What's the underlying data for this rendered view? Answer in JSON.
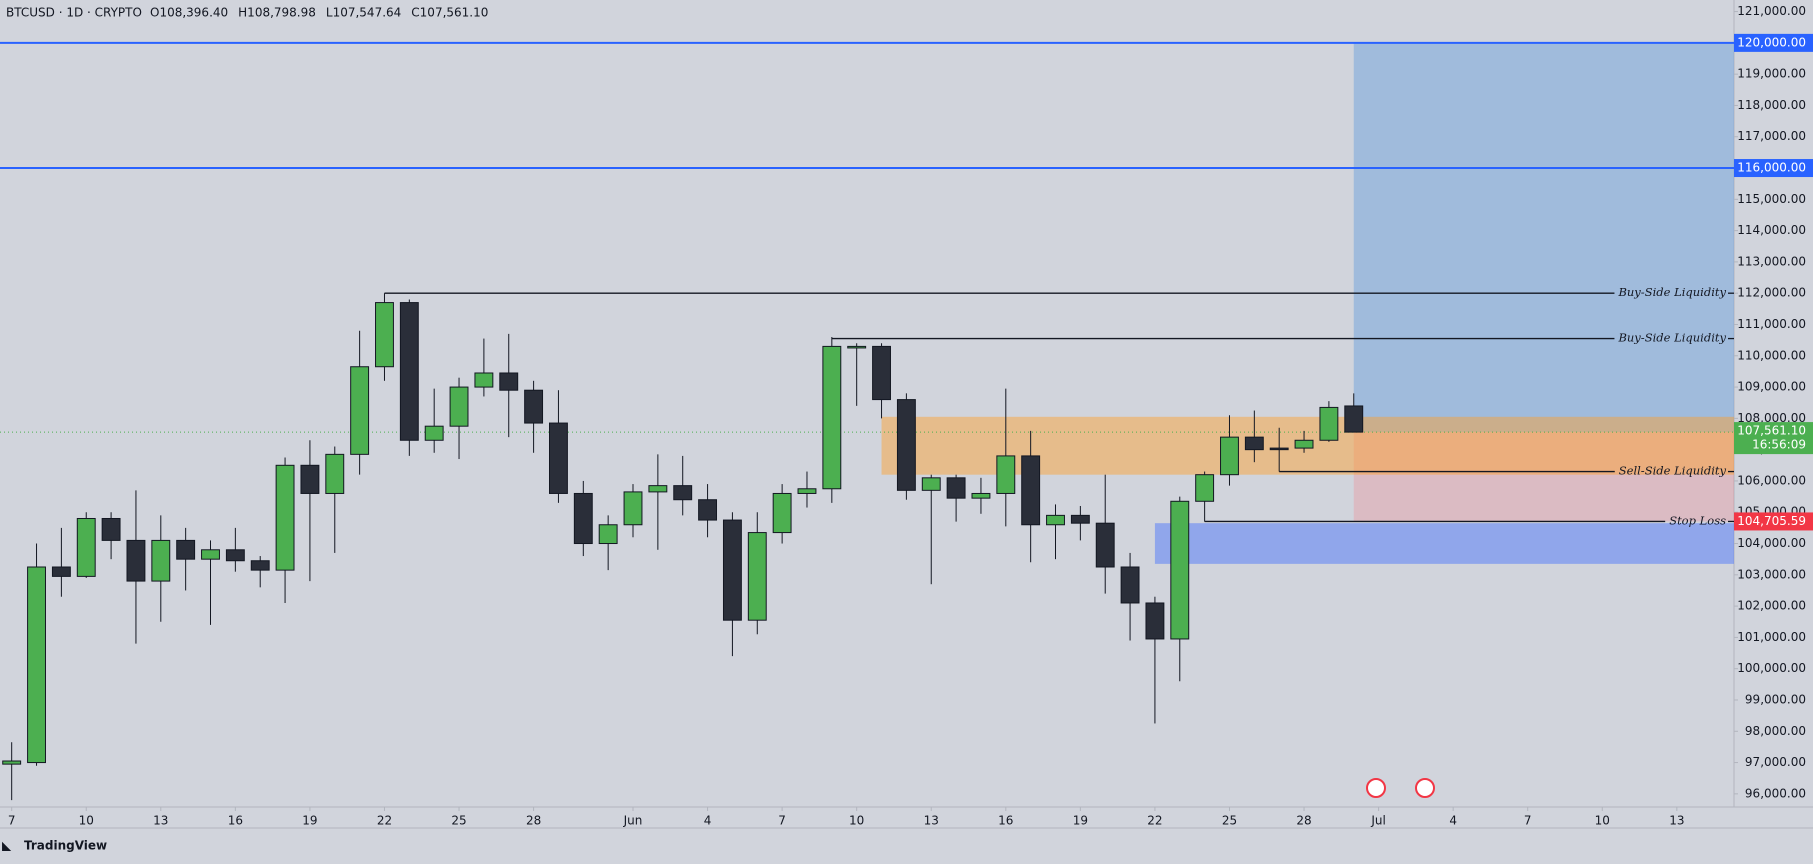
{
  "chart_data": {
    "type": "candlestick",
    "symbol": "BTCUSD · 1D · CRYPTO",
    "ohlc_labels": [
      "O108,396.40",
      "H108,798.98",
      "L107,547.64",
      "C107,561.10"
    ],
    "x": [
      0,
      1,
      2,
      3,
      4,
      5,
      6,
      7,
      8,
      9,
      10,
      11,
      12,
      13,
      14,
      15,
      16,
      17,
      18,
      19,
      20,
      21,
      22,
      23,
      24,
      25,
      26,
      27,
      28,
      29,
      30,
      31,
      32,
      33,
      34,
      35,
      36,
      37,
      38,
      39,
      40,
      41,
      42,
      43,
      44,
      45,
      46,
      47,
      48,
      49,
      50,
      51,
      52,
      53,
      54
    ],
    "open": [
      96950,
      97000,
      103250,
      102950,
      104800,
      104100,
      102800,
      104100,
      103500,
      103800,
      103450,
      103150,
      106500,
      105600,
      106850,
      109650,
      111700,
      107300,
      107750,
      109000,
      109450,
      108900,
      107850,
      105600,
      104000,
      104600,
      105650,
      105850,
      105400,
      104750,
      101550,
      104350,
      105600,
      105750,
      110250,
      110300,
      108600,
      105700,
      106100,
      105450,
      105600,
      106800,
      104600,
      104900,
      104650,
      103250,
      102100,
      100950,
      105350,
      106200,
      107400,
      107050,
      107050,
      107300,
      108396.4
    ],
    "high": [
      97650,
      104000,
      104500,
      105000,
      105000,
      105700,
      104900,
      104500,
      104100,
      104500,
      103600,
      106750,
      107300,
      107100,
      110800,
      112000,
      111800,
      108950,
      109300,
      110550,
      110700,
      109200,
      108900,
      106000,
      104900,
      105900,
      106850,
      106800,
      105900,
      105000,
      105000,
      105900,
      106300,
      110600,
      110400,
      110400,
      108800,
      106200,
      106200,
      106100,
      108950,
      107600,
      105250,
      105200,
      106200,
      103700,
      102300,
      105500,
      106300,
      108100,
      108250,
      107700,
      107600,
      108550,
      108798.98
    ],
    "low": [
      95800,
      96900,
      102300,
      102900,
      103500,
      100800,
      101500,
      102500,
      101400,
      103100,
      102600,
      102100,
      102800,
      103700,
      106200,
      109200,
      106800,
      106900,
      106700,
      108700,
      107400,
      106900,
      105300,
      103600,
      103150,
      104200,
      103800,
      104900,
      104200,
      100400,
      101100,
      104000,
      105150,
      105300,
      108400,
      108000,
      105400,
      102700,
      104700,
      104950,
      104550,
      103400,
      103500,
      104100,
      102400,
      100900,
      98250,
      99600,
      104700,
      105850,
      106600,
      106300,
      106900,
      107250,
      107547.64
    ],
    "close": [
      97050,
      103250,
      102950,
      104800,
      104100,
      102800,
      104100,
      103500,
      103800,
      103450,
      103150,
      106500,
      105600,
      106850,
      109650,
      111700,
      107300,
      107750,
      109000,
      109450,
      108900,
      107850,
      105600,
      104000,
      104600,
      105650,
      105850,
      105400,
      104750,
      101550,
      104350,
      105600,
      105750,
      110300,
      110300,
      108600,
      105700,
      106100,
      105450,
      105600,
      106800,
      104600,
      104900,
      104650,
      103250,
      102100,
      100950,
      105350,
      106200,
      107400,
      107000,
      107000,
      107300,
      108350,
      107561.1
    ],
    "up_color": "#4caf50",
    "down_color": "#2a2e39",
    "xlim": [
      -0.47,
      69.3
    ],
    "ylim": [
      95580,
      121370
    ],
    "xticks": [
      {
        "value": 0,
        "label": "7"
      },
      {
        "value": 3,
        "label": "10"
      },
      {
        "value": 6,
        "label": "13"
      },
      {
        "value": 9,
        "label": "16"
      },
      {
        "value": 12,
        "label": "19"
      },
      {
        "value": 15,
        "label": "22"
      },
      {
        "value": 18,
        "label": "25"
      },
      {
        "value": 21,
        "label": "28"
      },
      {
        "value": 25,
        "label": "Jun"
      },
      {
        "value": 28,
        "label": "4"
      },
      {
        "value": 31,
        "label": "7"
      },
      {
        "value": 34,
        "label": "10"
      },
      {
        "value": 37,
        "label": "13"
      },
      {
        "value": 40,
        "label": "16"
      },
      {
        "value": 43,
        "label": "19"
      },
      {
        "value": 46,
        "label": "22"
      },
      {
        "value": 49,
        "label": "25"
      },
      {
        "value": 52,
        "label": "28"
      },
      {
        "value": 55,
        "label": "Jul"
      },
      {
        "value": 58,
        "label": "4"
      },
      {
        "value": 61,
        "label": "7"
      },
      {
        "value": 64,
        "label": "10"
      },
      {
        "value": 67,
        "label": "13"
      }
    ],
    "yticks": [
      {
        "value": 96000,
        "label": "96,000.00"
      },
      {
        "value": 97000,
        "label": "97,000.00"
      },
      {
        "value": 98000,
        "label": "98,000.00"
      },
      {
        "value": 99000,
        "label": "99,000.00"
      },
      {
        "value": 100000,
        "label": "100,000.00"
      },
      {
        "value": 101000,
        "label": "101,000.00"
      },
      {
        "value": 102000,
        "label": "102,000.00"
      },
      {
        "value": 103000,
        "label": "103,000.00"
      },
      {
        "value": 104000,
        "label": "104,000.00"
      },
      {
        "value": 105000,
        "label": "105,000.00"
      },
      {
        "value": 106000,
        "label": "106,000.00"
      },
      {
        "value": 107000,
        "label": "107,000.00"
      },
      {
        "value": 108000,
        "label": "108,000.00"
      },
      {
        "value": 109000,
        "label": "109,000.00"
      },
      {
        "value": 110000,
        "label": "110,000.00"
      },
      {
        "value": 111000,
        "label": "111,000.00"
      },
      {
        "value": 112000,
        "label": "112,000.00"
      },
      {
        "value": 113000,
        "label": "113,000.00"
      },
      {
        "value": 114000,
        "label": "114,000.00"
      },
      {
        "value": 115000,
        "label": "115,000.00"
      },
      {
        "value": 116000,
        "label": "116,000.00"
      },
      {
        "value": 117000,
        "label": "117,000.00"
      },
      {
        "value": 118000,
        "label": "118,000.00"
      },
      {
        "value": 119000,
        "label": "119,000.00"
      },
      {
        "value": 120000,
        "label": "120,000.00"
      },
      {
        "value": 121000,
        "label": "121,000.00"
      }
    ],
    "levels": [
      {
        "value": 120000,
        "label": "120,000.00",
        "color": "#2962ff"
      },
      {
        "value": 116000,
        "label": "116,000.00",
        "color": "#2962ff"
      }
    ],
    "position": {
      "from": 54,
      "target": 120000,
      "entry": 107561.1,
      "stop": 104705.59,
      "target_color": "rgba(120,165,220,0.55)",
      "stop_color": "rgba(242,130,140,0.3)"
    },
    "zones": [
      {
        "from": 35,
        "top": 108050,
        "bottom": 106200,
        "color": "rgba(255,160,40,0.45)"
      },
      {
        "from": 46,
        "top": 104650,
        "bottom": 103350,
        "color": "rgba(80,120,250,0.5)"
      }
    ],
    "annotations": [
      {
        "text": "Buy-Side Liquidity",
        "value": 112000,
        "from": 15
      },
      {
        "text": "Buy-Side Liquidity",
        "value": 110550,
        "from": 33
      },
      {
        "text": "Sell-Side Liquidity",
        "value": 106300,
        "from": 51
      },
      {
        "text": "Stop Loss",
        "value": 104705.59,
        "label": "104,705.59",
        "from": 48,
        "badge_color": "#f23645"
      }
    ],
    "last_price": {
      "value": 107561.1,
      "label": "107,561.10",
      "countdown": "16:56:09",
      "color": "#4caf50"
    },
    "footer": "TradingView"
  }
}
